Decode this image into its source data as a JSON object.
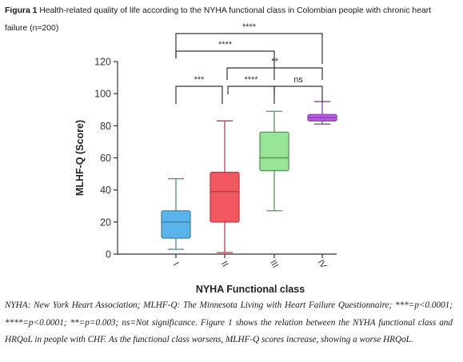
{
  "caption": {
    "label": "Figura 1",
    "text": "Health-related quality of life according to the NYHA functional class in Colombian people with chronic heart failure (n=200)"
  },
  "footnote": {
    "text": "NYHA: New York Heart Association; MLHF-Q: The Minnesota Living with Heart Failure Questionnaire; ***=p<0.0001; ****=p<0.0001; **=p=0.003; ns=Not significance. Figure 1 shows the relation between the NYHA functional class and HRQoL in people with CHF. As the functional class worsens, MLHF-Q scores increase, showing a worse HRQoL."
  },
  "chart_data": {
    "type": "box",
    "xlabel": "NYHA Functional class",
    "ylabel": "MLHF-Q (Score)",
    "ylim": [
      0,
      120
    ],
    "yticks": [
      0,
      20,
      40,
      60,
      80,
      100,
      120
    ],
    "categories": [
      "I",
      "II",
      "III",
      "IV"
    ],
    "boxes": [
      {
        "category": "I",
        "min": 3,
        "q1": 10,
        "median": 20,
        "q3": 27,
        "max": 47,
        "fill": "#5ab4ec",
        "stroke": "#4a83a8"
      },
      {
        "category": "II",
        "min": 1,
        "q1": 20,
        "median": 39,
        "q3": 51,
        "max": 83,
        "fill": "#f2585f",
        "stroke": "#b6414a"
      },
      {
        "category": "III",
        "min": 27,
        "q1": 52,
        "median": 60,
        "q3": 76,
        "max": 89,
        "fill": "#98e598",
        "stroke": "#55975a"
      },
      {
        "category": "IV",
        "min": 81,
        "q1": 83,
        "median": 85,
        "q3": 87,
        "max": 95,
        "fill": "#be58ec",
        "stroke": "#8a45aa"
      }
    ],
    "comparisons": [
      {
        "from": "I",
        "to": "IV",
        "label": "****"
      },
      {
        "from": "I",
        "to": "III",
        "label": "****"
      },
      {
        "from": "II",
        "to": "IV",
        "label": "**"
      },
      {
        "from": "I",
        "to": "II",
        "label": "***"
      },
      {
        "from": "II",
        "to": "III",
        "label": "****"
      },
      {
        "from": "III",
        "to": "IV",
        "label": "ns"
      }
    ]
  }
}
